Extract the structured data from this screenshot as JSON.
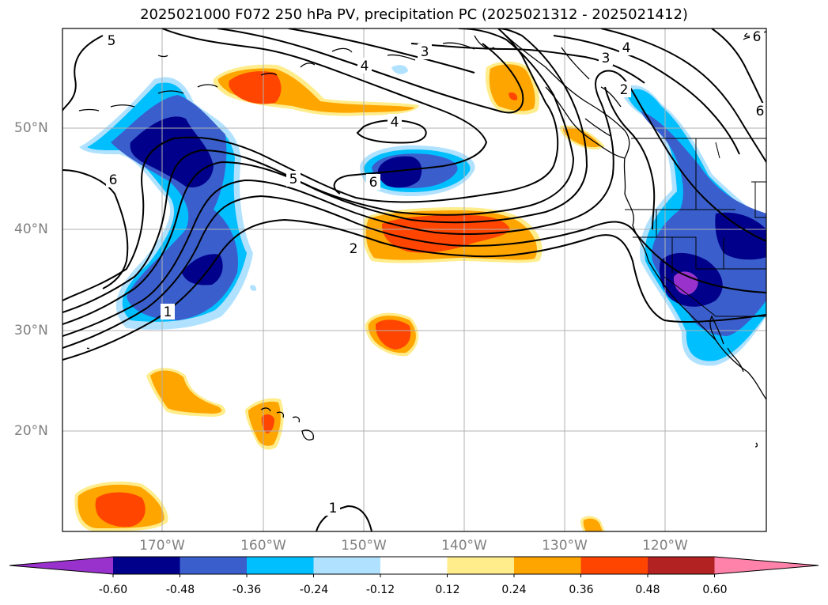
{
  "title": "2025021000 F072 250 hPa PV, precipitation PC (2025021312 - 2025021412)",
  "lat_labels": [
    "50°N",
    "40°N",
    "30°N",
    "20°N"
  ],
  "lon_labels": [
    "170°W",
    "160°W",
    "150°W",
    "140°W",
    "130°W",
    "120°W"
  ],
  "colorbar": {
    "ticks": [
      "-0.60",
      "-0.48",
      "-0.36",
      "-0.24",
      "-0.12",
      "0.12",
      "0.24",
      "0.36",
      "0.48",
      "0.60"
    ],
    "colors": [
      "#9932cc",
      "#00008b",
      "#3a5fcd",
      "#00bfff",
      "#b0e2ff",
      "#ffffff",
      "#ffec8b",
      "#ffa500",
      "#ff4500",
      "#b22222",
      "#ff82ab"
    ]
  },
  "contour_labels": [
    "5",
    "3",
    "4",
    "3",
    "4",
    "6",
    "2",
    "4",
    "6",
    "5",
    "6",
    "2",
    "1",
    "6",
    "1"
  ]
}
